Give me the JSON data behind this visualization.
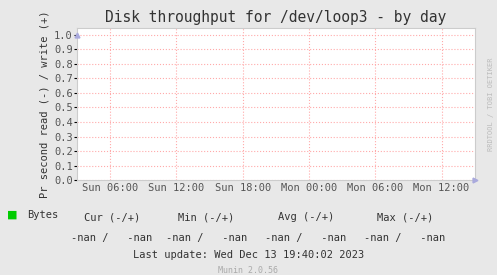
{
  "title": "Disk throughput for /dev/loop3 - by day",
  "ylabel": "Pr second read (-) / write (+)",
  "background_color": "#e8e8e8",
  "plot_bg_color": "#ffffff",
  "grid_color": "#ffaaaa",
  "border_color": "#cccccc",
  "yticks": [
    0.0,
    0.1,
    0.2,
    0.3,
    0.4,
    0.5,
    0.6,
    0.7,
    0.8,
    0.9,
    1.0
  ],
  "ylim": [
    0.0,
    1.05
  ],
  "xtick_labels": [
    "Sun 06:00",
    "Sun 12:00",
    "Sun 18:00",
    "Mon 00:00",
    "Mon 06:00",
    "Mon 12:00"
  ],
  "xtick_positions": [
    0.0833,
    0.25,
    0.4167,
    0.5833,
    0.75,
    0.9167
  ],
  "legend_label": "Bytes",
  "legend_color": "#00cc00",
  "cur_label": "Cur (-/+)",
  "min_label": "Min (-/+)",
  "avg_label": "Avg (-/+)",
  "max_label": "Max (-/+)",
  "cur_val": "-nan /   -nan",
  "min_val": "-nan /   -nan",
  "avg_val": "-nan /   -nan",
  "max_val": "-nan /   -nan",
  "bottom_text": "Last update: Wed Dec 13 19:40:02 2023",
  "munin_text": "Munin 2.0.56",
  "watermark": "RRDTOOL / TOBI OETIKER",
  "arrow_color": "#aaaadd",
  "tick_color": "#555555",
  "text_color": "#333333",
  "label_fontsize": 7.5,
  "title_fontsize": 10.5
}
